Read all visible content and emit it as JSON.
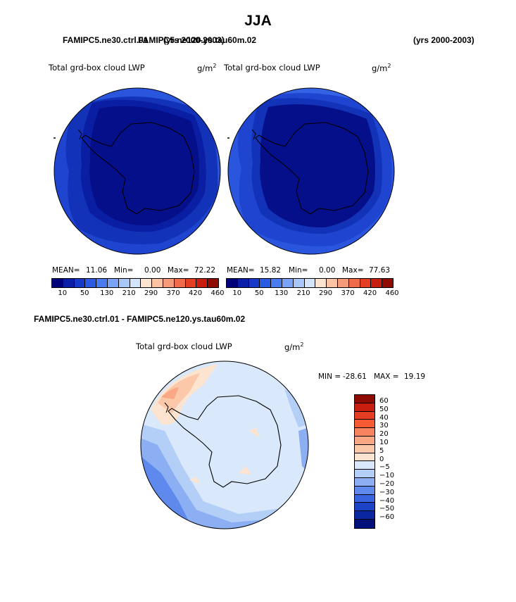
{
  "title": "JJA",
  "top_left_case": "FAMIPC5.ne30.ctrl.01",
  "top_left_years": "(yrs 2000-2003)",
  "top_right_case": "FAMIPC5.ne120.ys.tau60m.02",
  "top_right_years": "(yrs 2000-2003)",
  "variable": "Total grd-box cloud LWP",
  "units": "g/m",
  "units_exp": "2",
  "panel1": {
    "mean_label": "MEAN=",
    "mean": "11.06",
    "min_label": "Min=",
    "min": "0.00",
    "max_label": "Max=",
    "max": "72.22"
  },
  "panel2": {
    "mean_label": "MEAN=",
    "mean": "15.82",
    "min_label": "Min=",
    "min": "0.00",
    "max_label": "Max=",
    "max": "77.63"
  },
  "abs_colorbar": {
    "labels": [
      "10",
      "50",
      "130",
      "210",
      "290",
      "370",
      "420",
      "460"
    ],
    "colors": [
      "#00007a",
      "#0b1ea8",
      "#1739c8",
      "#2c5be3",
      "#4a7cf0",
      "#7aa2f5",
      "#a8c6f8",
      "#d4e4fb",
      "#fde4d0",
      "#fbc3a4",
      "#f59a78",
      "#ef6b4a",
      "#e43e22",
      "#c81e10",
      "#8f0b00"
    ]
  },
  "diff_title": "FAMIPC5.ne30.ctrl.01 - FAMIPC5.ne120.ys.tau60m.02",
  "diff_min_label": "MIN =",
  "diff_min": "-28.61",
  "diff_max_label": "MAX =",
  "diff_max": "19.19",
  "diff_colorbar": {
    "labels": [
      "60",
      "50",
      "40",
      "30",
      "20",
      "10",
      "5",
      "0",
      "−5",
      "−10",
      "−20",
      "−30",
      "−40",
      "−50",
      "−60"
    ],
    "colors": [
      "#8f0b00",
      "#c81e10",
      "#e43e22",
      "#f55a33",
      "#f7845e",
      "#f9a784",
      "#fbc8aa",
      "#fde4d0",
      "#d9e8fb",
      "#b4cff7",
      "#8caef2",
      "#5f89ec",
      "#3864e0",
      "#1c43c6",
      "#0a26a0",
      "#00107a"
    ]
  }
}
